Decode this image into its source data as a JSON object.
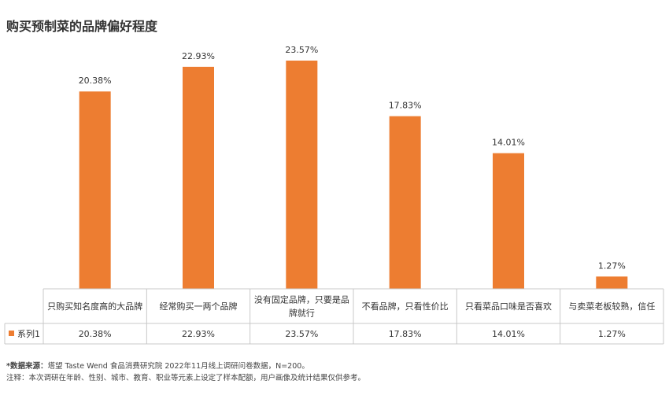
{
  "title": "购买预制菜的品牌偏好程度",
  "chart_data": {
    "type": "bar",
    "categories": [
      [
        "只购买知名度高的大品牌"
      ],
      [
        "经常购买一两个品牌"
      ],
      [
        "没有固定品牌，只要是品",
        "牌就行"
      ],
      [
        "不看品牌，只看性价比"
      ],
      [
        "只看菜品口味是否喜欢"
      ],
      [
        "与卖菜老板较熟，信任"
      ]
    ],
    "series": [
      {
        "name": "系列1",
        "values": [
          20.38,
          22.93,
          23.57,
          17.83,
          14.01,
          1.27
        ]
      }
    ],
    "data_labels": [
      "20.38%",
      "22.93%",
      "23.57%",
      "17.83%",
      "14.01%",
      "1.27%"
    ],
    "ylim": [
      0,
      25
    ],
    "bar_color": "#ED7D31",
    "grid": false,
    "data_table": true
  },
  "footer": {
    "source_label": "*数据来源：",
    "source_text": "塔望 Taste Wend 食品消费研究院 2022年11月线上调研问卷数据，N=200。",
    "note": "注释：本次调研在年龄、性别、城市、教育、职业等元素上设定了样本配额，用户画像及统计结果仅供参考。"
  }
}
